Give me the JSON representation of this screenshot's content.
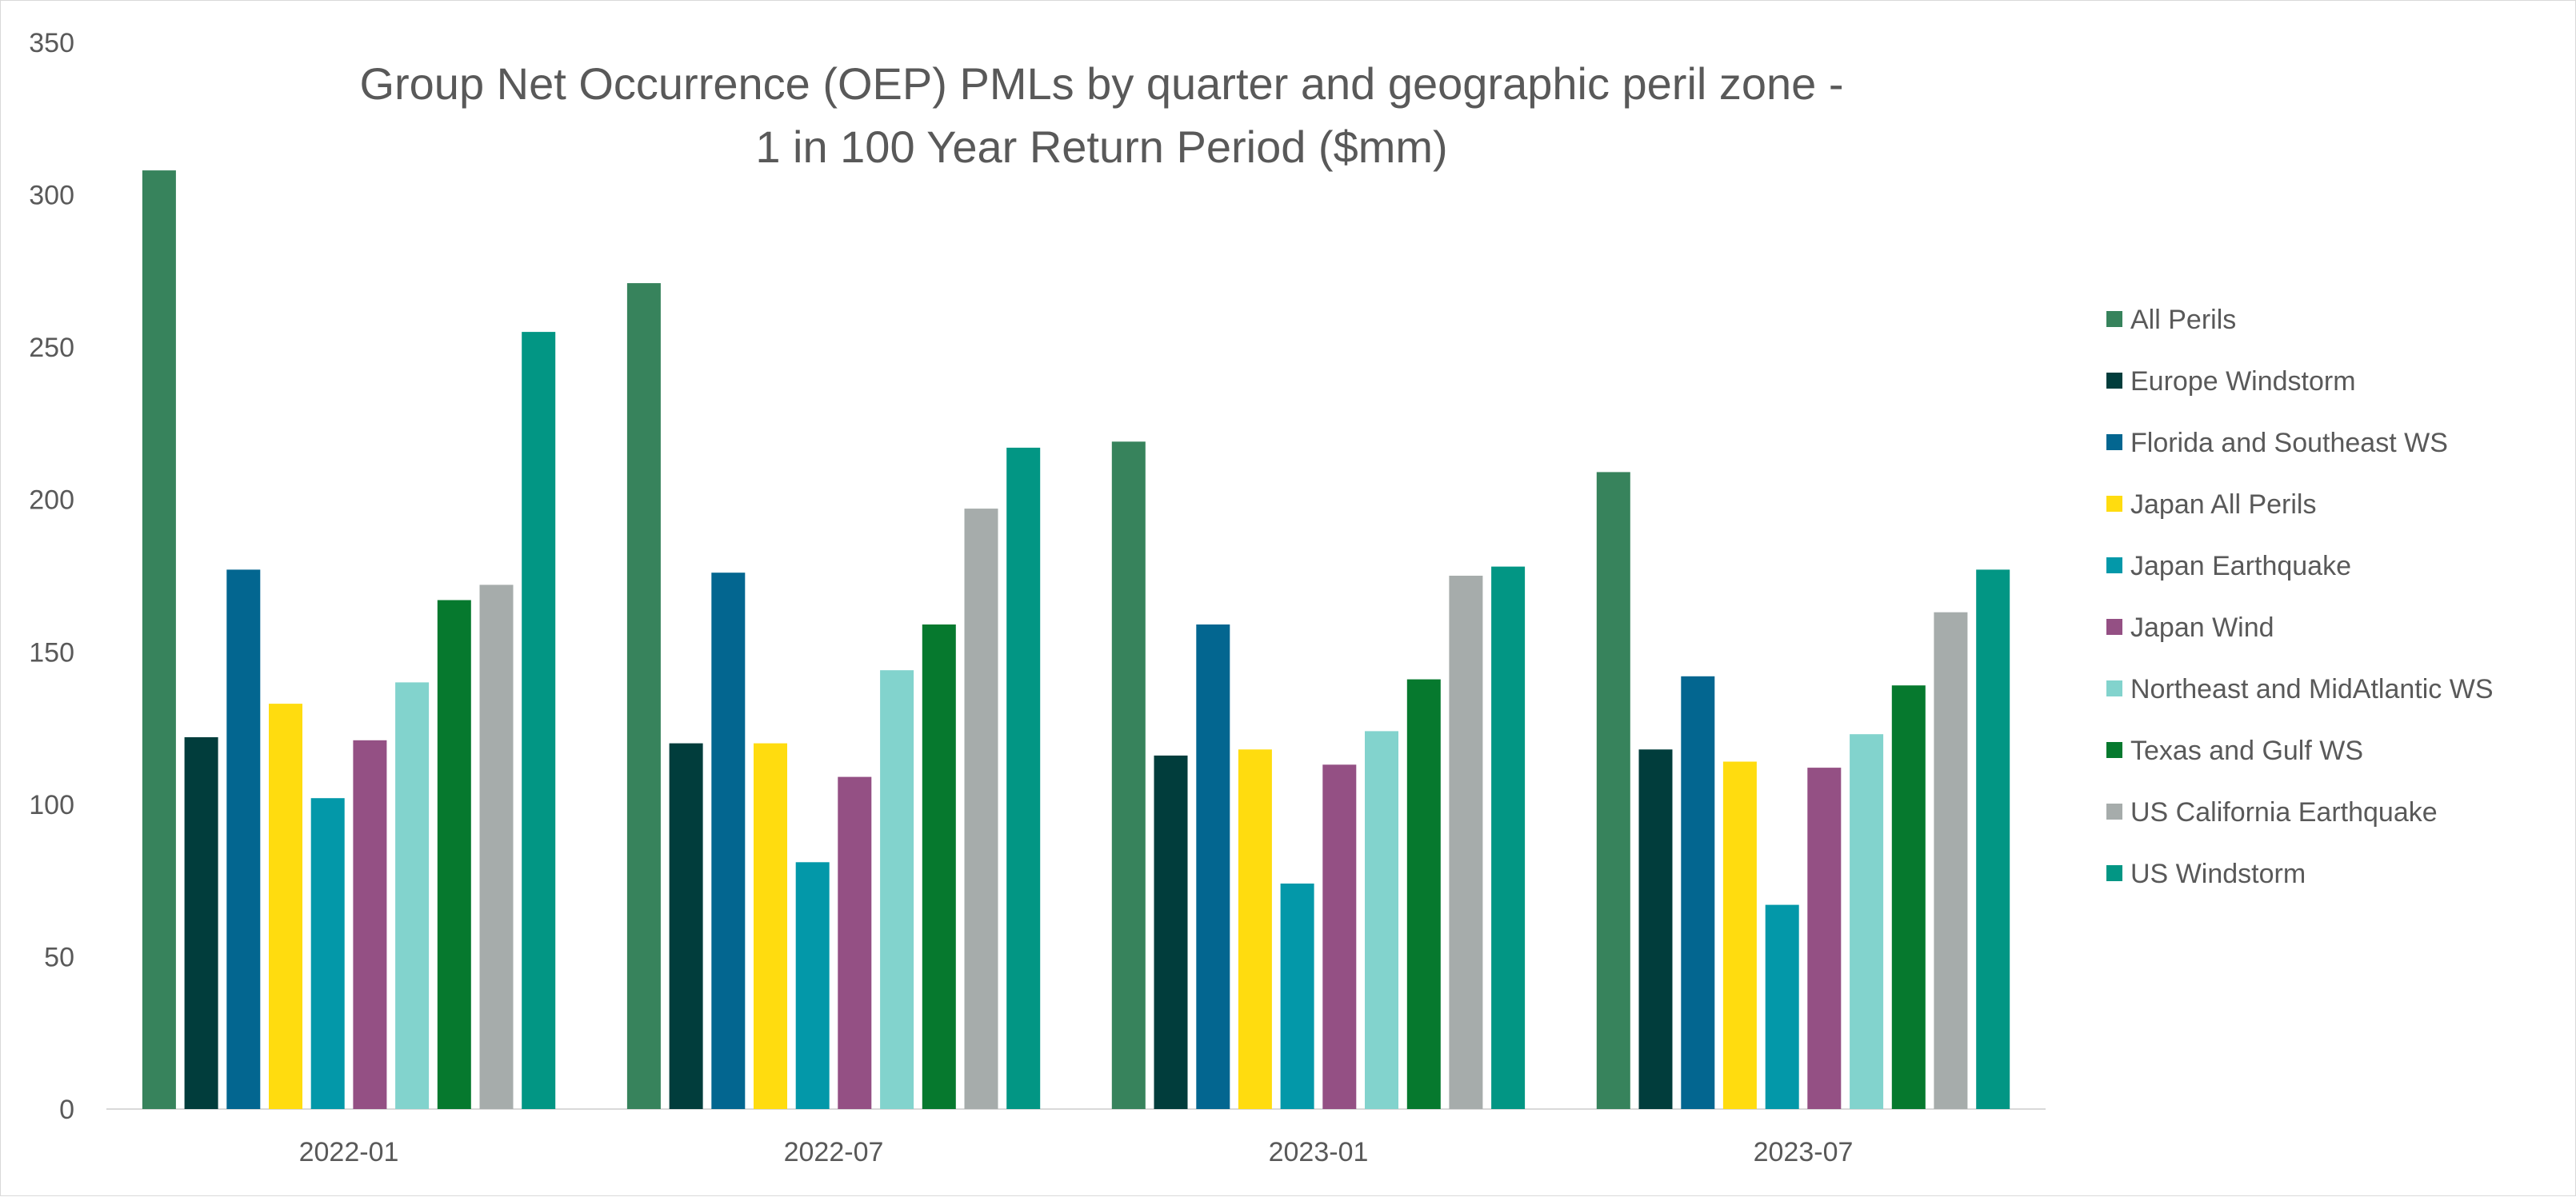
{
  "chart_data": {
    "type": "bar",
    "title_lines": [
      "Group Net Occurrence (OEP) PMLs by quarter and geographic peril zone -",
      "1 in 100 Year Return Period ($mm)"
    ],
    "xlabel": "",
    "ylabel": "",
    "ylim": [
      0,
      350
    ],
    "yticks": [
      "0",
      "50",
      "100",
      "150",
      "200",
      "250",
      "300",
      "350"
    ],
    "grid": false,
    "legend_position": "right",
    "categories": [
      "2022-01",
      "2022-07",
      "2023-01",
      "2023-07"
    ],
    "series": [
      {
        "name": "All Perils",
        "color": "#37835C",
        "values": [
          308,
          271,
          219,
          209
        ]
      },
      {
        "name": "Europe Windstorm",
        "color": "#013D3C",
        "values": [
          122,
          120,
          116,
          118
        ]
      },
      {
        "name": "Florida and Southeast WS",
        "color": "#036690",
        "values": [
          177,
          176,
          159,
          142
        ]
      },
      {
        "name": "Japan All Perils",
        "color": "#FFDC0F",
        "values": [
          133,
          120,
          118,
          114
        ]
      },
      {
        "name": "Japan Earthquake",
        "color": "#0398A9",
        "values": [
          102,
          81,
          74,
          67
        ]
      },
      {
        "name": "Japan Wind",
        "color": "#945084",
        "values": [
          121,
          109,
          113,
          112
        ]
      },
      {
        "name": "Northeast and MidAtlantic WS",
        "color": "#82D3CD",
        "values": [
          140,
          144,
          124,
          123
        ]
      },
      {
        "name": "Texas and Gulf WS",
        "color": "#06792E",
        "values": [
          167,
          159,
          141,
          139
        ]
      },
      {
        "name": "US California Earthquake",
        "color": "#A6ACAB",
        "values": [
          172,
          197,
          175,
          163
        ]
      },
      {
        "name": "US Windstorm",
        "color": "#029684",
        "values": [
          255,
          217,
          178,
          177
        ]
      }
    ]
  }
}
